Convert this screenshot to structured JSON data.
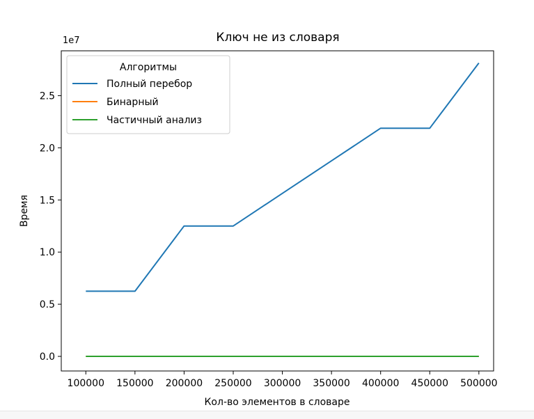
{
  "chart_data": {
    "type": "line",
    "title": "Ключ не из словаря",
    "xlabel": "Кол-во элементов в словаре",
    "ylabel": "Время",
    "y_offset_label": "1e7",
    "legend_title": "Алгоритмы",
    "legend_position": "upper-left",
    "grid": false,
    "xlim": [
      75000,
      515000
    ],
    "ylim": [
      -0.14,
      2.93
    ],
    "x_ticks": [
      100000,
      150000,
      200000,
      250000,
      300000,
      350000,
      400000,
      450000,
      500000
    ],
    "y_ticks": [
      0.0,
      0.5,
      1.0,
      1.5,
      2.0,
      2.5
    ],
    "x_tick_labels": [
      "100000",
      "150000",
      "200000",
      "250000",
      "300000",
      "350000",
      "400000",
      "450000",
      "500000"
    ],
    "y_tick_labels": [
      "0.0",
      "0.5",
      "1.0",
      "1.5",
      "2.0",
      "2.5"
    ],
    "x": [
      100000,
      150000,
      200000,
      250000,
      300000,
      350000,
      400000,
      450000,
      500000
    ],
    "series": [
      {
        "name": "Полный перебор",
        "color": "#1f77b4",
        "values": [
          0.625,
          0.625,
          1.25,
          1.25,
          1.563,
          1.875,
          2.188,
          2.188,
          2.813
        ]
      },
      {
        "name": "Бинарный",
        "color": "#ff7f0e",
        "values": [
          0,
          0,
          0,
          0,
          0,
          0,
          0,
          0,
          0
        ]
      },
      {
        "name": "Частичный анализ",
        "color": "#2ca02c",
        "values": [
          0,
          0,
          0,
          0,
          0,
          0,
          0,
          0,
          0
        ]
      }
    ]
  }
}
